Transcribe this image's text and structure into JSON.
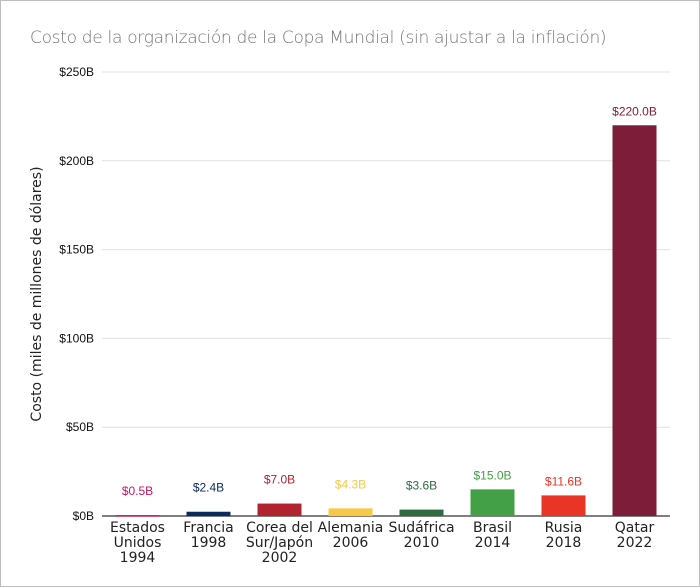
{
  "chart_data": {
    "type": "bar",
    "title": "Costo de la organización de la Copa Mundial (sin ajustar a la inflación)",
    "ylabel": "Costo (miles de millones de dólares)",
    "xlabel": "",
    "ylim": [
      0,
      250
    ],
    "yticks": [
      0,
      50,
      100,
      150,
      200,
      250
    ],
    "ytick_labels": [
      "$0B",
      "$50B",
      "$100B",
      "$150B",
      "$200B",
      "$250B"
    ],
    "grid": true,
    "categories": [
      [
        "Estados",
        "Unidos",
        "1994"
      ],
      [
        "Francia",
        "1998"
      ],
      [
        "Corea del",
        "Sur/Japón",
        "2002"
      ],
      [
        "Alemania",
        "2006"
      ],
      [
        "Sudáfrica",
        "2010"
      ],
      [
        "Brasil",
        "2014"
      ],
      [
        "Rusia",
        "2018"
      ],
      [
        "Qatar",
        "2022"
      ]
    ],
    "values": [
      0.5,
      2.4,
      7.0,
      4.3,
      3.6,
      15.0,
      11.6,
      220.0
    ],
    "data_labels": [
      "$0.5B",
      "$2.4B",
      "$7.0B",
      "$4.3B",
      "$3.6B",
      "$15.0B",
      "$11.6B",
      "$220.0B"
    ],
    "colors": [
      "#c2185b",
      "#0d2a5c",
      "#b0232f",
      "#f9c846",
      "#2e6b40",
      "#43a047",
      "#e83525",
      "#7d1d3a"
    ]
  }
}
